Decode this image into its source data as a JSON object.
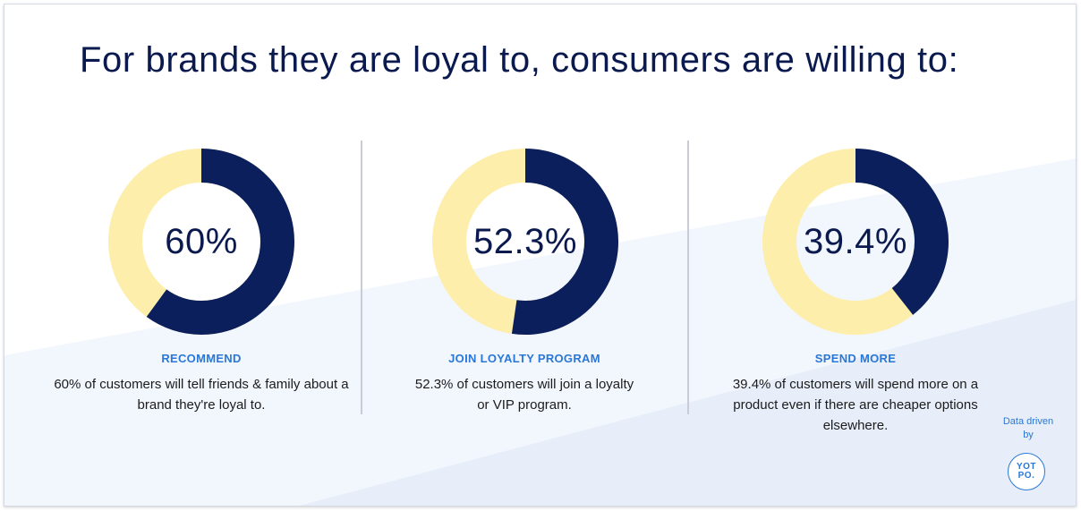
{
  "title": "For brands they are loyal to, consumers are willing to:",
  "chart_data": {
    "type": "pie",
    "variant": "donut",
    "colors": {
      "filled": "#0b1f5c",
      "remainder": "#fdeeab"
    },
    "charts": [
      {
        "value": 60,
        "value_label": "60%",
        "label": "RECOMMEND",
        "description": "60% of customers will tell friends & family about a brand they're loyal to."
      },
      {
        "value": 52.3,
        "value_label": "52.3%",
        "label": "JOIN LOYALTY PROGRAM",
        "description": "52.3% of customers will join a loyalty or VIP program."
      },
      {
        "value": 39.4,
        "value_label": "39.4%",
        "label": "SPEND MORE",
        "description": "39.4% of customers will spend more on a product even if there are cheaper options elsewhere."
      }
    ]
  },
  "credit": {
    "text": "Data driven by",
    "logo_line1": "YOT",
    "logo_line2": "PO."
  }
}
